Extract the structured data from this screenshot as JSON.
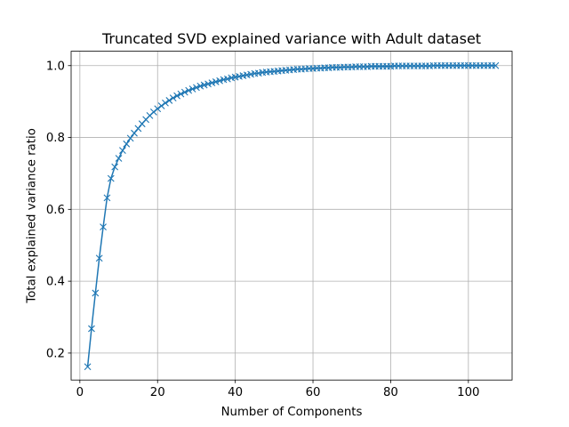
{
  "chart_data": {
    "type": "line",
    "title": "Truncated SVD explained variance with Adult dataset",
    "xlabel": "Number of Components",
    "ylabel": "Total explained variance ratio",
    "xlim": [
      -2.25,
      111.25
    ],
    "ylim": [
      0.125,
      1.04
    ],
    "xticks": [
      0,
      20,
      40,
      60,
      80,
      100
    ],
    "yticks": [
      0.2,
      0.4,
      0.6,
      0.8,
      1.0
    ],
    "xtick_labels": [
      "0",
      "20",
      "40",
      "60",
      "80",
      "100"
    ],
    "ytick_labels": [
      "0.2",
      "0.4",
      "0.6",
      "0.8",
      "1.0"
    ],
    "grid": true,
    "marker": "x",
    "color": "#1f77b4",
    "series": [
      {
        "x": [
          2,
          3,
          4,
          5,
          6,
          7,
          8,
          9,
          10,
          11,
          12,
          13,
          14,
          15,
          16,
          17,
          18,
          19,
          20,
          21,
          22,
          23,
          24,
          25,
          26,
          27,
          28,
          29,
          30,
          31,
          32,
          33,
          34,
          35,
          36,
          37,
          38,
          39,
          40,
          41,
          42,
          43,
          44,
          45,
          46,
          47,
          48,
          49,
          50,
          51,
          52,
          53,
          54,
          55,
          56,
          57,
          58,
          59,
          60,
          61,
          62,
          63,
          64,
          65,
          66,
          67,
          68,
          69,
          70,
          71,
          72,
          73,
          74,
          75,
          76,
          77,
          78,
          79,
          80,
          81,
          82,
          83,
          84,
          85,
          86,
          87,
          88,
          89,
          90,
          91,
          92,
          93,
          94,
          95,
          96,
          97,
          98,
          99,
          100,
          101,
          102,
          103,
          104,
          105,
          106,
          107
        ],
        "values": [
          0.162,
          0.268,
          0.367,
          0.464,
          0.551,
          0.632,
          0.686,
          0.718,
          0.742,
          0.764,
          0.782,
          0.798,
          0.812,
          0.825,
          0.838,
          0.85,
          0.861,
          0.871,
          0.88,
          0.888,
          0.896,
          0.903,
          0.91,
          0.916,
          0.921,
          0.926,
          0.931,
          0.935,
          0.939,
          0.943,
          0.946,
          0.949,
          0.952,
          0.955,
          0.958,
          0.961,
          0.963,
          0.966,
          0.968,
          0.97,
          0.972,
          0.974,
          0.976,
          0.978,
          0.979,
          0.981,
          0.982,
          0.983,
          0.984,
          0.985,
          0.986,
          0.987,
          0.988,
          0.989,
          0.99,
          0.99,
          0.991,
          0.992,
          0.992,
          0.993,
          0.993,
          0.994,
          0.994,
          0.995,
          0.995,
          0.995,
          0.996,
          0.996,
          0.996,
          0.997,
          0.997,
          0.997,
          0.997,
          0.998,
          0.998,
          0.998,
          0.998,
          0.998,
          0.998,
          0.999,
          0.999,
          0.999,
          0.999,
          0.999,
          0.999,
          0.999,
          0.999,
          0.999,
          0.999,
          1.0,
          1.0,
          1.0,
          1.0,
          1.0,
          1.0,
          1.0,
          1.0,
          1.0,
          1.0,
          1.0,
          1.0,
          1.0,
          1.0,
          1.0,
          1.0,
          1.0
        ]
      }
    ]
  }
}
